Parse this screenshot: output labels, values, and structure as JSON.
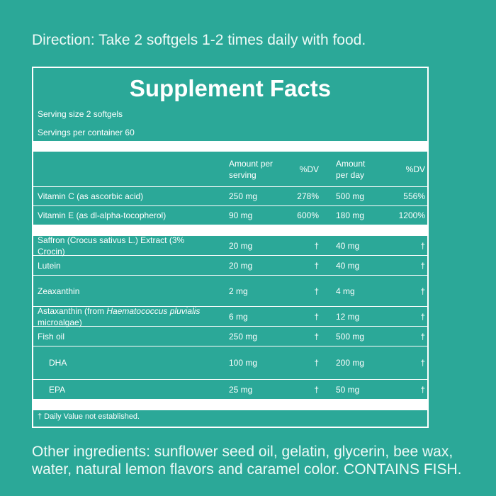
{
  "direction": "Direction: Take 2 softgels 1-2 times daily with food.",
  "table": {
    "title": "Supplement Facts",
    "serving_size": "Serving size 2 softgels",
    "servings_per_container": "Servings per container 60",
    "header": {
      "amount_serving": "Amount per serving",
      "dv_serving": "%DV",
      "amount_day": "Amount per day",
      "dv_day": "%DV"
    },
    "sections": [
      {
        "rows": [
          {
            "name": "Vitamin C (as ascorbic acid)",
            "amount_serving": "250 mg",
            "dv_serving": "278%",
            "amount_day": "500 mg",
            "dv_day": "556%"
          },
          {
            "name": "Vitamin E (as dl-alpha-tocopherol)",
            "amount_serving": "90 mg",
            "dv_serving": "600%",
            "amount_day": "180 mg",
            "dv_day": "1200%"
          }
        ]
      },
      {
        "rows": [
          {
            "name": "Saffron (Crocus sativus L.) Extract (3% Crocin)",
            "amount_serving": "20 mg",
            "dv_serving": "†",
            "amount_day": "40 mg",
            "dv_day": "†"
          },
          {
            "name": "Lutein",
            "amount_serving": "20 mg",
            "dv_serving": "†",
            "amount_day": "40 mg",
            "dv_day": "†"
          },
          {
            "name": "Zeaxanthin",
            "amount_serving": "2 mg",
            "dv_serving": "†",
            "amount_day": "4 mg",
            "dv_day": "†"
          },
          {
            "name": [
              {
                "text": "Astaxanthin (from ",
                "italic": false
              },
              {
                "text": "Haematococcus pluvialis",
                "italic": true
              },
              {
                "text": " microalgae)",
                "italic": false
              }
            ],
            "amount_serving": "6 mg",
            "dv_serving": "†",
            "amount_day": "12 mg",
            "dv_day": "†"
          },
          {
            "name": "Fish oil",
            "amount_serving": "250 mg",
            "dv_serving": "†",
            "amount_day": "500 mg",
            "dv_day": "†"
          },
          {
            "name": "DHA",
            "indent": true,
            "amount_serving": "100 mg",
            "dv_serving": "†",
            "amount_day": "200 mg",
            "dv_day": "†"
          },
          {
            "name": "EPA",
            "indent": true,
            "amount_serving": "25 mg",
            "dv_serving": "†",
            "amount_day": "50 mg",
            "dv_day": "†"
          }
        ]
      }
    ],
    "footnote": "† Daily Value not established."
  },
  "other_ingredients": "Other ingredients: sunflower seed oil, gelatin, glycerin, bee wax, water, natural lemon flavors and caramel color. CONTAINS FISH."
}
